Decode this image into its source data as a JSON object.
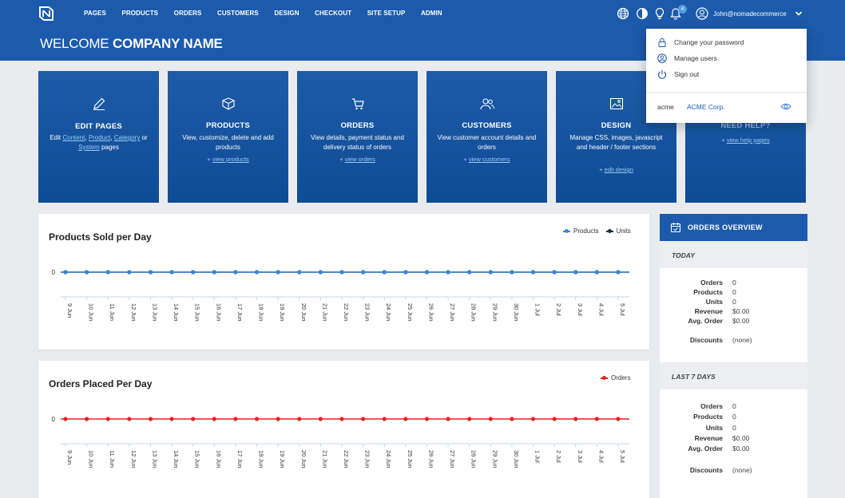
{
  "nav": {
    "items": [
      "PAGES",
      "PRODUCTS",
      "ORDERS",
      "CUSTOMERS",
      "DESIGN",
      "CHECKOUT",
      "SITE SETUP",
      "ADMIN"
    ],
    "notification_count": "4",
    "user_email": "John@nomadecommerce",
    "icons": [
      "globe-icon",
      "contrast-icon",
      "lightbulb-icon",
      "bell-icon",
      "user-icon",
      "chevron-down-icon"
    ]
  },
  "header": {
    "welcome_prefix": "WELCOME",
    "company_name": "COMPANY NAME"
  },
  "cards": [
    {
      "title": "EDIT PAGES",
      "icon": "pencil-icon",
      "desc_edit": "Edit",
      "link_content": "Content",
      "link_product": "Product",
      "link_category": "Category",
      "desc_or": "or",
      "link_system": "System",
      "desc_pages": "pages"
    },
    {
      "title": "PRODUCTS",
      "icon": "box-icon",
      "desc": "View, customize, delete and add products",
      "link": "view products"
    },
    {
      "title": "ORDERS",
      "icon": "cart-icon",
      "desc": "View details, payment status and delivery status of orders",
      "link": "view orders"
    },
    {
      "title": "CUSTOMERS",
      "icon": "people-icon",
      "desc": "View customer account details and orders",
      "link": "view customers"
    },
    {
      "title": "DESIGN",
      "icon": "image-icon",
      "desc": "Manage CSS, images, javascript and header / footer sections",
      "link": "edit design"
    },
    {
      "title": "NEED HELP?",
      "icon": "help-icon",
      "link": "view help pages"
    }
  ],
  "link_prefix": "+",
  "charts": {
    "dates": [
      "9 Jun",
      "10 Jun",
      "11 Jun",
      "12 Jun",
      "13 Jun",
      "14 Jun",
      "15 Jun",
      "16 Jun",
      "17 Jun",
      "18 Jun",
      "19 Jun",
      "20 Jun",
      "21 Jun",
      "22 Jun",
      "23 Jun",
      "24 Jun",
      "25 Jun",
      "26 Jun",
      "27 Jun",
      "28 Jun",
      "29 Jun",
      "30 Jun",
      "1 Jul",
      "2 Jul",
      "3 Jul",
      "4 Jul",
      "5 Jul"
    ]
  },
  "chart_data": [
    {
      "type": "line",
      "title": "Products Sold per Day",
      "x": [
        "9 Jun",
        "10 Jun",
        "11 Jun",
        "12 Jun",
        "13 Jun",
        "14 Jun",
        "15 Jun",
        "16 Jun",
        "17 Jun",
        "18 Jun",
        "19 Jun",
        "20 Jun",
        "21 Jun",
        "22 Jun",
        "23 Jun",
        "24 Jun",
        "25 Jun",
        "26 Jun",
        "27 Jun",
        "28 Jun",
        "29 Jun",
        "30 Jun",
        "1 Jul",
        "2 Jul",
        "3 Jul",
        "4 Jul",
        "5 Jul"
      ],
      "yticks": [
        "0"
      ],
      "legend_position": "top-right",
      "series": [
        {
          "name": "Products",
          "color": "#3a86d6",
          "values": [
            0,
            0,
            0,
            0,
            0,
            0,
            0,
            0,
            0,
            0,
            0,
            0,
            0,
            0,
            0,
            0,
            0,
            0,
            0,
            0,
            0,
            0,
            0,
            0,
            0,
            0,
            0
          ]
        },
        {
          "name": "Units",
          "color": "#1b2a4a",
          "values": [
            0,
            0,
            0,
            0,
            0,
            0,
            0,
            0,
            0,
            0,
            0,
            0,
            0,
            0,
            0,
            0,
            0,
            0,
            0,
            0,
            0,
            0,
            0,
            0,
            0,
            0,
            0
          ]
        }
      ]
    },
    {
      "type": "line",
      "title": "Orders Placed Per Day",
      "x": [
        "9 Jun",
        "10 Jun",
        "11 Jun",
        "12 Jun",
        "13 Jun",
        "14 Jun",
        "15 Jun",
        "16 Jun",
        "17 Jun",
        "18 Jun",
        "19 Jun",
        "20 Jun",
        "21 Jun",
        "22 Jun",
        "23 Jun",
        "24 Jun",
        "25 Jun",
        "26 Jun",
        "27 Jun",
        "28 Jun",
        "29 Jun",
        "30 Jun",
        "1 Jul",
        "2 Jul",
        "3 Jul",
        "4 Jul",
        "5 Jul"
      ],
      "yticks": [
        "0"
      ],
      "legend_position": "top-right",
      "series": [
        {
          "name": "Orders",
          "color": "#e02424",
          "values": [
            0,
            0,
            0,
            0,
            0,
            0,
            0,
            0,
            0,
            0,
            0,
            0,
            0,
            0,
            0,
            0,
            0,
            0,
            0,
            0,
            0,
            0,
            0,
            0,
            0,
            0,
            0
          ]
        }
      ]
    }
  ],
  "overview": {
    "title": "ORDERS OVERVIEW",
    "today_label": "TODAY",
    "last7_label": "LAST 7 DAYS",
    "keys": {
      "orders": "Orders",
      "products": "Products",
      "units": "Units",
      "revenue": "Revenue",
      "avg": "Avg. Order",
      "discounts": "Discounts"
    },
    "today": {
      "orders": "0",
      "products": "0",
      "units": "0",
      "revenue": "$0.00",
      "avg": "$0.00",
      "discounts": "(none)"
    },
    "last7": {
      "orders": "0",
      "products": "0",
      "units": "0",
      "revenue": "$0.00",
      "avg": "$0.00",
      "discounts": "(none)"
    }
  },
  "user_menu": {
    "items": [
      "Change your password",
      "Manage users",
      "Sign out"
    ],
    "account": "acme",
    "company": "ACME Corp."
  },
  "colors": {
    "primary": "#1c5aab",
    "products": "#3a86d6",
    "units": "#1b2a4a",
    "orders": "#e02424"
  }
}
